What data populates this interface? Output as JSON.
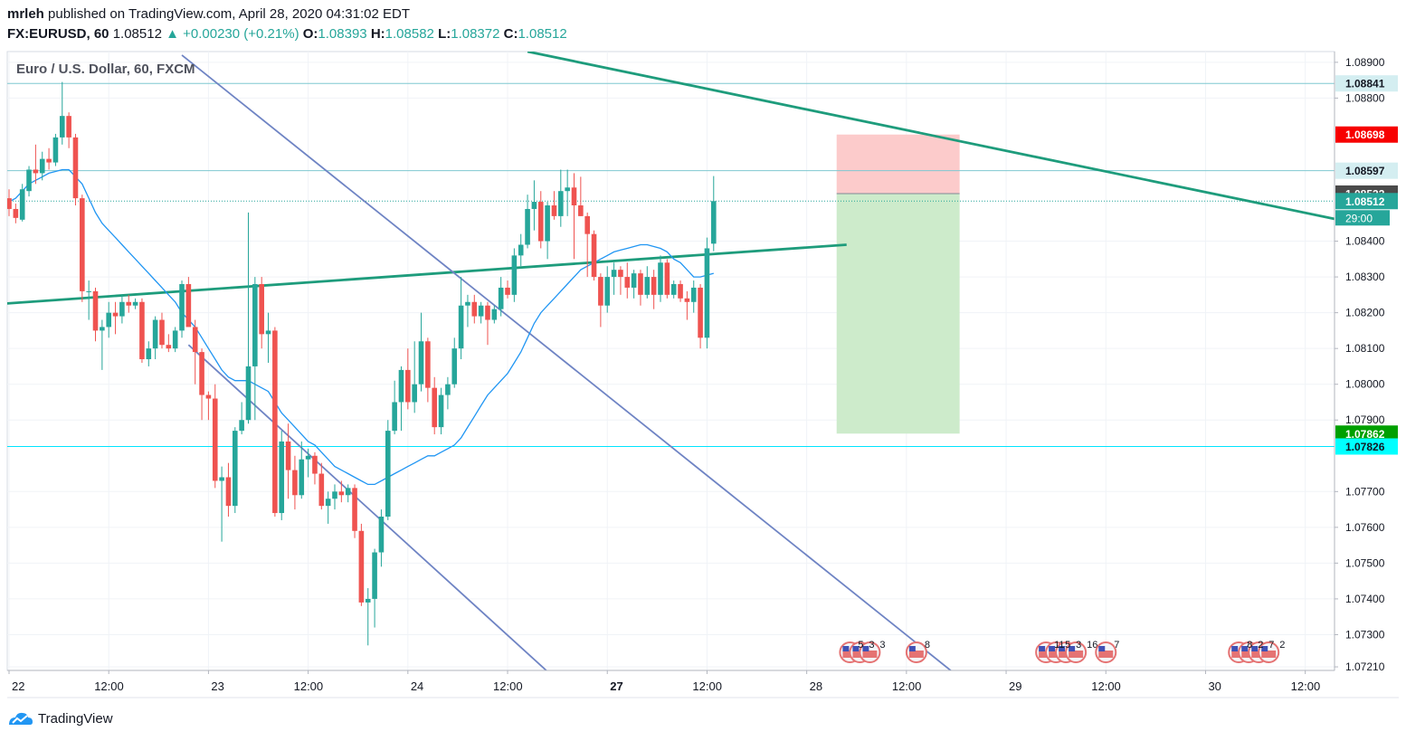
{
  "header": {
    "author": "mrleh",
    "published_text": "published on TradingView.com, April 28, 2020 04:31:02 EDT",
    "symbol": "FX:EURUSD, 60",
    "last": "1.08512",
    "change": "+0.00230 (+0.21%)",
    "open_label": "O:",
    "open": "1.08393",
    "high_label": "H:",
    "high": "1.08582",
    "low_label": "L:",
    "low": "1.08372",
    "close_label": "C:",
    "close": "1.08512"
  },
  "footer": {
    "brand": "TradingView",
    "logo_icon": "tradingview-logo-icon"
  },
  "colors": {
    "up": "#26a69a",
    "down": "#ef5350",
    "ma": "#2196f3",
    "trendline": "#1e9c7c",
    "channel": "#6f84c4",
    "hline": "#7fc8d0",
    "cyanline": "#00e5ff",
    "stop_zone": "#fccbcb",
    "target_zone": "#cdebcb"
  },
  "chart_data": {
    "type": "candlestick",
    "title": "Euro / U.S. Dollar, 60, FXCM",
    "ylim": [
      1.072,
      1.0893
    ],
    "y_ticks": [
      "1.08900",
      "1.08800",
      "1.08400",
      "1.08300",
      "1.08200",
      "1.08100",
      "1.08000",
      "1.07900",
      "1.07700",
      "1.07600",
      "1.07500",
      "1.07400",
      "1.07300",
      "1.07210"
    ],
    "x_ticks": [
      {
        "i": 0,
        "label": "22",
        "bold": false
      },
      {
        "i": 15,
        "label": "12:00",
        "bold": false
      },
      {
        "i": 30,
        "label": "23",
        "bold": false
      },
      {
        "i": 45,
        "label": "12:00",
        "bold": false
      },
      {
        "i": 60,
        "label": "24",
        "bold": false
      },
      {
        "i": 75,
        "label": "12:00",
        "bold": false
      },
      {
        "i": 90,
        "label": "27",
        "bold": true
      },
      {
        "i": 105,
        "label": "12:00",
        "bold": false
      },
      {
        "i": 120,
        "label": "28",
        "bold": false
      },
      {
        "i": 135,
        "label": "12:00",
        "bold": false
      },
      {
        "i": 150,
        "label": "29",
        "bold": false
      },
      {
        "i": 165,
        "label": "12:00",
        "bold": false
      },
      {
        "i": 180,
        "label": "30",
        "bold": false
      },
      {
        "i": 195,
        "label": "12:00",
        "bold": false
      }
    ],
    "price_labels": [
      {
        "value": "1.08841",
        "y": 1.08841,
        "bg": "#d4eef1",
        "fg": "#131722"
      },
      {
        "value": "1.08698",
        "y": 1.08698,
        "bg": "#f70000",
        "fg": "#ffffff"
      },
      {
        "value": "1.08597",
        "y": 1.08597,
        "bg": "#d4eef1",
        "fg": "#131722"
      },
      {
        "value": "1.08533",
        "y": 1.08533,
        "bg": "#4a4a4a",
        "fg": "#ffffff"
      },
      {
        "value": "1.08512",
        "y": 1.08512,
        "bg": "#26a69a",
        "fg": "#ffffff"
      },
      {
        "value": "1.07862",
        "y": 1.07862,
        "bg": "#00a000",
        "fg": "#ffffff"
      },
      {
        "value": "1.07826",
        "y": 1.07826,
        "bg": "#00ffff",
        "fg": "#131722"
      }
    ],
    "countdown": "29:00",
    "horizontal_lines": [
      1.08841,
      1.08597,
      1.07826
    ],
    "position": {
      "entry": 1.08533,
      "stop": 1.08698,
      "target": 1.07862,
      "from_i": 124.5,
      "to_i": 143
    },
    "trendlines": [
      {
        "from": [
          -1,
          1.08225
        ],
        "to": [
          126,
          1.0839
        ],
        "role": "support-trendline"
      },
      {
        "from": [
          78,
          1.0893
        ],
        "to": [
          200,
          1.0846
        ],
        "role": "resistance-trendline"
      },
      {
        "from": [
          26,
          1.0892
        ],
        "to": [
          143,
          1.0718
        ],
        "role": "channel-upper"
      },
      {
        "from": [
          27,
          1.0811
        ],
        "to": [
          82,
          1.0718
        ],
        "role": "channel-lower"
      }
    ],
    "candles_ohlc": [
      [
        1.0852,
        1.08545,
        1.0847,
        1.0849
      ],
      [
        1.0849,
        1.08505,
        1.0845,
        1.08465
      ],
      [
        1.0846,
        1.0856,
        1.08455,
        1.08545
      ],
      [
        1.0854,
        1.0861,
        1.08525,
        1.086
      ],
      [
        1.086,
        1.0867,
        1.0856,
        1.0859
      ],
      [
        1.0859,
        1.0865,
        1.0857,
        1.0863
      ],
      [
        1.0863,
        1.0866,
        1.086,
        1.0862
      ],
      [
        1.0862,
        1.087,
        1.0861,
        1.0869
      ],
      [
        1.0869,
        1.08845,
        1.0867,
        1.0875
      ],
      [
        1.0875,
        1.0876,
        1.0866,
        1.0869
      ],
      [
        1.0869,
        1.087,
        1.085,
        1.0852
      ],
      [
        1.0852,
        1.0853,
        1.0823,
        1.0826
      ],
      [
        1.0826,
        1.0829,
        1.0818,
        1.0826
      ],
      [
        1.0826,
        1.0827,
        1.0812,
        1.0815
      ],
      [
        1.0815,
        1.0818,
        1.0804,
        1.0816
      ],
      [
        1.0816,
        1.0823,
        1.0813,
        1.082
      ],
      [
        1.082,
        1.0823,
        1.0814,
        1.0819
      ],
      [
        1.0819,
        1.0825,
        1.0817,
        1.0823
      ],
      [
        1.0823,
        1.0825,
        1.082,
        1.0822
      ],
      [
        1.0822,
        1.0824,
        1.0821,
        1.0823
      ],
      [
        1.0823,
        1.0824,
        1.0806,
        1.0807
      ],
      [
        1.0807,
        1.0812,
        1.0805,
        1.081
      ],
      [
        1.081,
        1.0819,
        1.0807,
        1.0818
      ],
      [
        1.0818,
        1.082,
        1.081,
        1.0811
      ],
      [
        1.0811,
        1.0814,
        1.0809,
        1.081
      ],
      [
        1.081,
        1.0816,
        1.0809,
        1.0815
      ],
      [
        1.0815,
        1.0829,
        1.0813,
        1.0828
      ],
      [
        1.0828,
        1.083,
        1.0818,
        1.0816
      ],
      [
        1.0816,
        1.0818,
        1.08,
        1.0809
      ],
      [
        1.0809,
        1.081,
        1.079,
        1.0797
      ],
      [
        1.0797,
        1.0798,
        1.079,
        1.0796
      ],
      [
        1.0796,
        1.08,
        1.0771,
        1.0773
      ],
      [
        1.0773,
        1.0777,
        1.0756,
        1.0774
      ],
      [
        1.0774,
        1.0778,
        1.0763,
        1.0766
      ],
      [
        1.0766,
        1.0788,
        1.0764,
        1.0787
      ],
      [
        1.0787,
        1.0795,
        1.0786,
        1.079
      ],
      [
        1.079,
        1.0848,
        1.0789,
        1.0805
      ],
      [
        1.0805,
        1.083,
        1.079,
        1.0828
      ],
      [
        1.0828,
        1.083,
        1.081,
        1.0814
      ],
      [
        1.0814,
        1.082,
        1.0806,
        1.0815
      ],
      [
        1.0815,
        1.0816,
        1.0763,
        1.0764
      ],
      [
        1.0764,
        1.0787,
        1.0762,
        1.0784
      ],
      [
        1.0784,
        1.0789,
        1.0768,
        1.0776
      ],
      [
        1.0776,
        1.078,
        1.0765,
        1.0769
      ],
      [
        1.0769,
        1.0784,
        1.0768,
        1.0779
      ],
      [
        1.0779,
        1.0782,
        1.0774,
        1.078
      ],
      [
        1.078,
        1.0781,
        1.0772,
        1.0775
      ],
      [
        1.0775,
        1.0778,
        1.0765,
        1.0766
      ],
      [
        1.0766,
        1.077,
        1.0761,
        1.0768
      ],
      [
        1.0768,
        1.0772,
        1.0765,
        1.077
      ],
      [
        1.077,
        1.0773,
        1.0767,
        1.0769
      ],
      [
        1.0769,
        1.0772,
        1.0767,
        1.0771
      ],
      [
        1.0771,
        1.0772,
        1.0757,
        1.0759
      ],
      [
        1.0759,
        1.0761,
        1.0738,
        1.0739
      ],
      [
        1.0739,
        1.0743,
        1.0727,
        1.074
      ],
      [
        1.074,
        1.0754,
        1.0732,
        1.0753
      ],
      [
        1.0753,
        1.0765,
        1.0749,
        1.0763
      ],
      [
        1.0763,
        1.079,
        1.0762,
        1.0787
      ],
      [
        1.0787,
        1.0801,
        1.0786,
        1.0795
      ],
      [
        1.0795,
        1.0805,
        1.0787,
        1.0804
      ],
      [
        1.0804,
        1.081,
        1.0793,
        1.0795
      ],
      [
        1.0795,
        1.0812,
        1.0792,
        1.08
      ],
      [
        1.08,
        1.082,
        1.0798,
        1.0812
      ],
      [
        1.0812,
        1.0813,
        1.0795,
        1.0799
      ],
      [
        1.0799,
        1.0802,
        1.0786,
        1.0788
      ],
      [
        1.0788,
        1.0799,
        1.0786,
        1.0797
      ],
      [
        1.0797,
        1.0802,
        1.0793,
        1.08
      ],
      [
        1.08,
        1.0813,
        1.0799,
        1.081
      ],
      [
        1.081,
        1.083,
        1.0807,
        1.0822
      ],
      [
        1.0822,
        1.0825,
        1.0816,
        1.0823
      ],
      [
        1.0823,
        1.0825,
        1.0817,
        1.0819
      ],
      [
        1.0819,
        1.0823,
        1.0817,
        1.0822
      ],
      [
        1.0822,
        1.0823,
        1.0811,
        1.0818
      ],
      [
        1.0818,
        1.0822,
        1.0817,
        1.0821
      ],
      [
        1.0821,
        1.083,
        1.0819,
        1.0827
      ],
      [
        1.0827,
        1.0829,
        1.0824,
        1.0825
      ],
      [
        1.0825,
        1.0838,
        1.0823,
        1.0836
      ],
      [
        1.0836,
        1.0842,
        1.0833,
        1.0839
      ],
      [
        1.0839,
        1.0853,
        1.0838,
        1.0849
      ],
      [
        1.0849,
        1.0857,
        1.0843,
        1.0851
      ],
      [
        1.0851,
        1.0854,
        1.0838,
        1.084
      ],
      [
        1.084,
        1.0851,
        1.0835,
        1.085
      ],
      [
        1.085,
        1.0854,
        1.0846,
        1.0847
      ],
      [
        1.0847,
        1.086,
        1.0844,
        1.0854
      ],
      [
        1.0854,
        1.086,
        1.0847,
        1.0855
      ],
      [
        1.0855,
        1.0859,
        1.0835,
        1.085
      ],
      [
        1.085,
        1.0858,
        1.0847,
        1.0847
      ],
      [
        1.0847,
        1.0848,
        1.083,
        1.0842
      ],
      [
        1.0842,
        1.0843,
        1.0829,
        1.083
      ],
      [
        1.083,
        1.0831,
        1.0816,
        1.0822
      ],
      [
        1.0822,
        1.0833,
        1.082,
        1.083
      ],
      [
        1.083,
        1.0834,
        1.0825,
        1.0832
      ],
      [
        1.0832,
        1.0833,
        1.0825,
        1.083
      ],
      [
        1.083,
        1.0834,
        1.0824,
        1.0827
      ],
      [
        1.0827,
        1.0832,
        1.0824,
        1.0831
      ],
      [
        1.0831,
        1.0832,
        1.0822,
        1.0825
      ],
      [
        1.0825,
        1.0833,
        1.0824,
        1.083
      ],
      [
        1.083,
        1.0832,
        1.0821,
        1.0825
      ],
      [
        1.0825,
        1.0836,
        1.0823,
        1.0834
      ],
      [
        1.0834,
        1.0835,
        1.0824,
        1.0825
      ],
      [
        1.0825,
        1.0829,
        1.0824,
        1.0828
      ],
      [
        1.0828,
        1.0829,
        1.0823,
        1.0824
      ],
      [
        1.0824,
        1.0826,
        1.0818,
        1.0823
      ],
      [
        1.0823,
        1.0829,
        1.082,
        1.0827
      ],
      [
        1.0827,
        1.0828,
        1.081,
        1.0813
      ],
      [
        1.0813,
        1.0841,
        1.081,
        1.0838
      ],
      [
        1.08393,
        1.08582,
        1.08372,
        1.08512
      ]
    ],
    "ma_series": [
      1.0851,
      1.0852,
      1.0854,
      1.0856,
      1.0857,
      1.0858,
      1.0859,
      1.08595,
      1.086,
      1.086,
      1.0858,
      1.0856,
      1.0852,
      1.0848,
      1.0845,
      1.0843,
      1.0841,
      1.0839,
      1.0837,
      1.0835,
      1.0833,
      1.0831,
      1.0829,
      1.0827,
      1.0825,
      1.0823,
      1.082,
      1.0818,
      1.0816,
      1.0813,
      1.081,
      1.0807,
      1.0804,
      1.0802,
      1.0801,
      1.0801,
      1.0801,
      1.08,
      1.0799,
      1.0798,
      1.0795,
      1.0792,
      1.079,
      1.0788,
      1.0786,
      1.0784,
      1.0783,
      1.0781,
      1.0779,
      1.0777,
      1.0776,
      1.0775,
      1.0774,
      1.0773,
      1.0772,
      1.0772,
      1.0773,
      1.0774,
      1.0775,
      1.0776,
      1.0777,
      1.0778,
      1.0779,
      1.078,
      1.078,
      1.0781,
      1.0782,
      1.0783,
      1.0785,
      1.0788,
      1.0791,
      1.0794,
      1.0797,
      1.0799,
      1.0801,
      1.0803,
      1.0806,
      1.0809,
      1.0813,
      1.0817,
      1.082,
      1.0822,
      1.0824,
      1.0826,
      1.0828,
      1.083,
      1.0832,
      1.0833,
      1.0834,
      1.0835,
      1.0836,
      1.0837,
      1.08375,
      1.0838,
      1.08385,
      1.0839,
      1.0839,
      1.08385,
      1.0838,
      1.0837,
      1.0835,
      1.0834,
      1.0832,
      1.083,
      1.083,
      1.08305,
      1.0831
    ],
    "event_markers": [
      {
        "i": 126.5,
        "labels": [
          "5",
          "3",
          "3"
        ],
        "count": 3
      },
      {
        "i": 136.5,
        "labels": [
          "8"
        ],
        "count": 1
      },
      {
        "i": 156,
        "labels": [
          "11",
          "5",
          "3",
          "16"
        ],
        "count": 4
      },
      {
        "i": 165,
        "labels": [
          "7"
        ],
        "count": 1
      },
      {
        "i": 185,
        "labels": [
          "8",
          "2",
          "7",
          "2"
        ],
        "count": 4
      }
    ]
  }
}
